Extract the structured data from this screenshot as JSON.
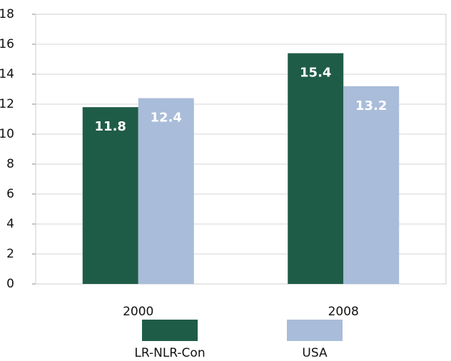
{
  "chart_data": {
    "type": "bar",
    "categories": [
      "2000",
      "2008"
    ],
    "series": [
      {
        "name": "LR-NLR-Con",
        "color": "#1f5c48",
        "values": [
          11.8,
          15.4
        ]
      },
      {
        "name": "USA",
        "color": "#a9bcd9",
        "values": [
          12.4,
          13.2
        ]
      }
    ],
    "ylim": [
      0,
      18
    ],
    "yticks": [
      0,
      2,
      4,
      6,
      8,
      10,
      12,
      14,
      16,
      18
    ],
    "grid": true
  }
}
